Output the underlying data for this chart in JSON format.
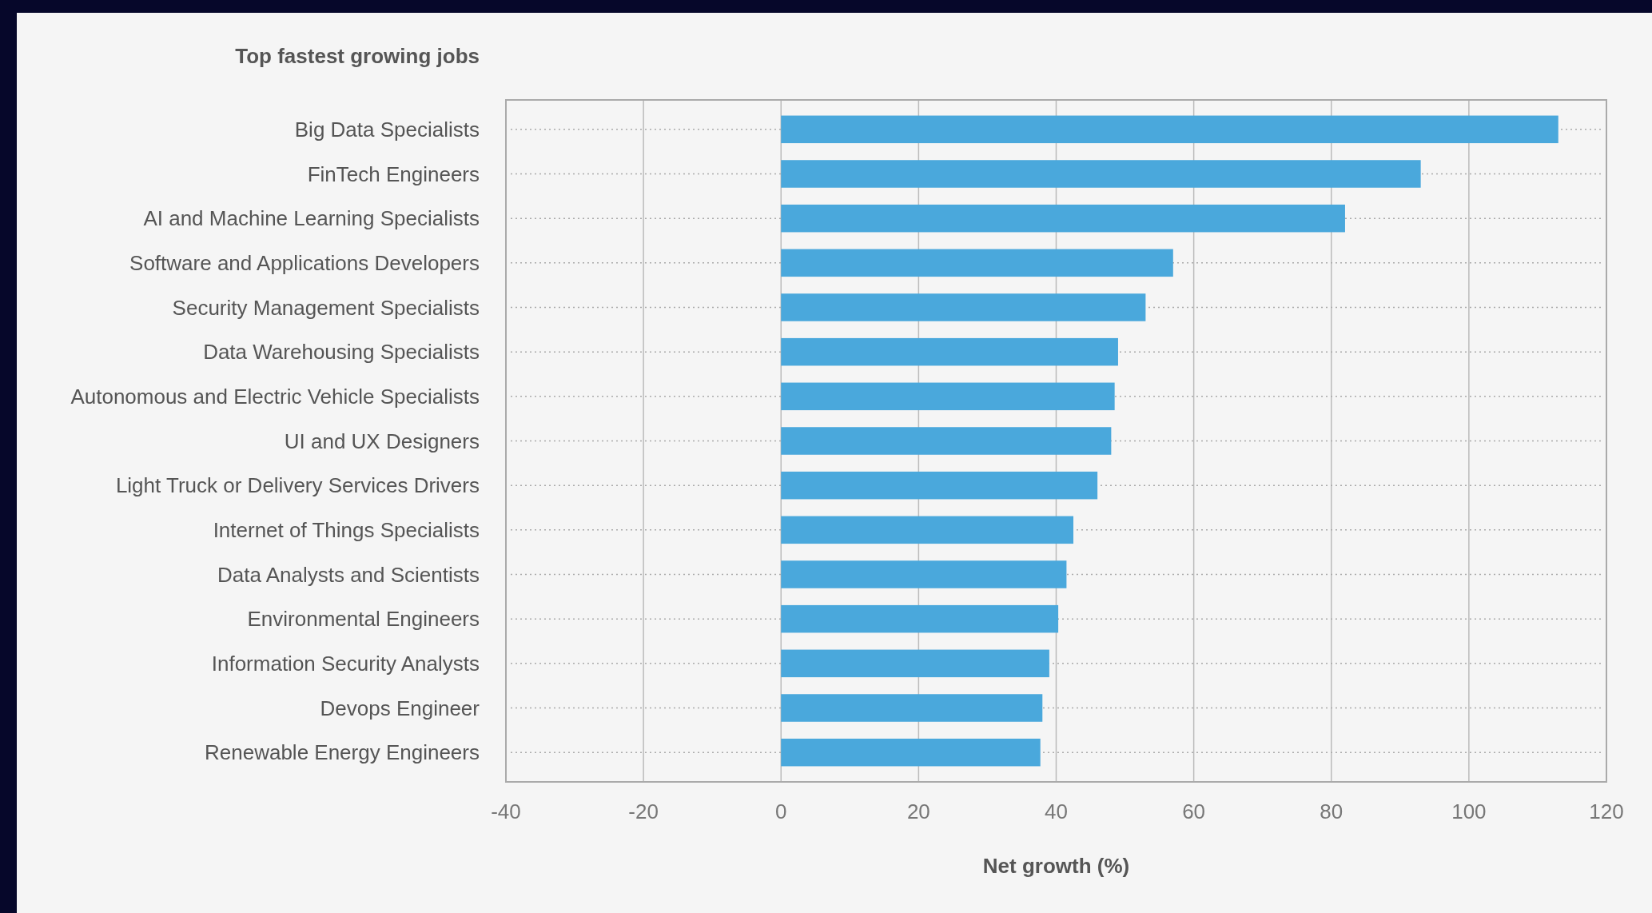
{
  "chart_data": {
    "type": "bar",
    "orientation": "horizontal",
    "title": "Top fastest growing jobs",
    "xlabel": "Net growth (%)",
    "categories": [
      "Big Data Specialists",
      "FinTech Engineers",
      "AI and Machine Learning Specialists",
      "Software and Applications Developers",
      "Security Management Specialists",
      "Data Warehousing Specialists",
      "Autonomous and Electric Vehicle Specialists",
      "UI and UX Designers",
      "Light Truck or Delivery Services Drivers",
      "Internet of Things Specialists",
      "Data Analysts and Scientists",
      "Environmental Engineers",
      "Information Security Analysts",
      "Devops Engineer",
      "Renewable Energy Engineers"
    ],
    "values": [
      113,
      93,
      82,
      57,
      53,
      49,
      48.5,
      48,
      46,
      42.5,
      41.5,
      40.3,
      39,
      38,
      37.7
    ],
    "color": "#4aa8dc",
    "xlim": [
      -40,
      120
    ],
    "xticks": [
      -40,
      -20,
      0,
      20,
      40,
      60,
      80,
      100,
      120
    ],
    "grid": true
  }
}
